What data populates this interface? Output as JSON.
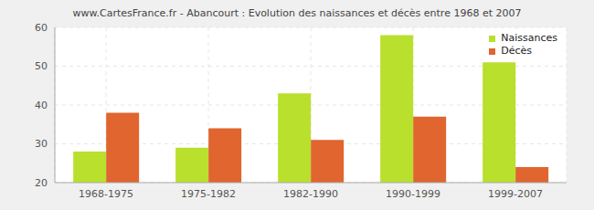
{
  "chart_data": {
    "type": "bar",
    "title": "www.CartesFrance.fr - Abancourt : Evolution des naissances et décès entre 1968 et 2007",
    "categories": [
      "1968-1975",
      "1975-1982",
      "1982-1990",
      "1990-1999",
      "1999-2007"
    ],
    "series": [
      {
        "name": "Naissances",
        "color": "#b9e02d",
        "values": [
          28,
          29,
          43,
          58,
          51
        ]
      },
      {
        "name": "Décès",
        "color": "#e0652f",
        "values": [
          38,
          34,
          31,
          37,
          24
        ]
      }
    ],
    "ylim": [
      20,
      60
    ],
    "yticks": [
      20,
      30,
      40,
      50,
      60
    ],
    "grid": true,
    "legend": "top-right"
  }
}
